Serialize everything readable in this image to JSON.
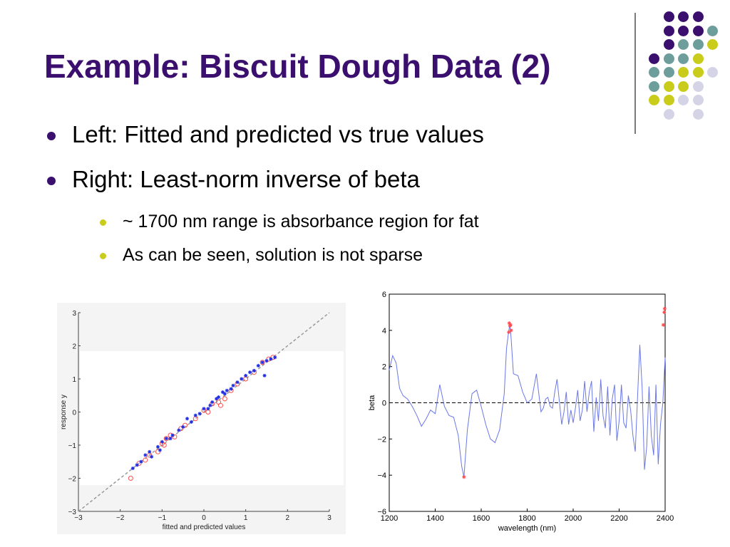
{
  "slide": {
    "title": "Example: Biscuit Dough Data (2)",
    "bullets": [
      "Left: Fitted and predicted vs true values",
      "Right: Least-norm inverse of beta"
    ],
    "sub_bullets": [
      "~ 1700 nm range is absorbance region for fat",
      "As can be seen, solution is not sparse"
    ]
  },
  "colors": {
    "title": "#3b0f6e",
    "bullet": "#3b0f6e",
    "sub_bullet": "#c9cc1a",
    "dot_purple": "#3b0f6e",
    "dot_teal": "#6e9e9c",
    "dot_yellow": "#c9cc1a",
    "dot_lavender": "#d4d4e6",
    "fitted_points": "#1f2fe0",
    "predicted_points": "#ff4d4d",
    "beta_line": "#6b78e6",
    "beta_markers": "#ff4d4d"
  },
  "chart_data": [
    {
      "type": "scatter",
      "xlabel": "fitted and predicted values",
      "ylabel": "response y",
      "xlim": [
        -3,
        3
      ],
      "ylim": [
        -3,
        3
      ],
      "xticks": [
        "−3",
        "−2",
        "−1",
        "0",
        "1",
        "2",
        "3"
      ],
      "yticks": [
        "−3",
        "−2",
        "−1",
        "0",
        "1",
        "2",
        "3"
      ],
      "reference_line": "y = x (dashed)",
      "series": [
        {
          "marker": "asterisk",
          "color": "#1f2fe0",
          "points": [
            [
              -1.7,
              -1.7
            ],
            [
              -1.6,
              -1.6
            ],
            [
              -1.5,
              -1.5
            ],
            [
              -1.4,
              -1.3
            ],
            [
              -1.3,
              -1.2
            ],
            [
              -1.25,
              -1.35
            ],
            [
              -1.1,
              -1.05
            ],
            [
              -1.05,
              -1.15
            ],
            [
              -1.0,
              -0.9
            ],
            [
              -0.9,
              -0.8
            ],
            [
              -0.8,
              -0.8
            ],
            [
              -0.75,
              -0.7
            ],
            [
              -0.6,
              -0.55
            ],
            [
              -0.5,
              -0.45
            ],
            [
              -0.4,
              -0.2
            ],
            [
              -0.3,
              -0.3
            ],
            [
              -0.2,
              -0.1
            ],
            [
              -0.1,
              -0.05
            ],
            [
              0.0,
              0.1
            ],
            [
              0.1,
              0.1
            ],
            [
              0.15,
              0.2
            ],
            [
              0.2,
              0.3
            ],
            [
              0.3,
              0.4
            ],
            [
              0.35,
              0.45
            ],
            [
              0.45,
              0.6
            ],
            [
              0.5,
              0.55
            ],
            [
              0.55,
              0.65
            ],
            [
              0.65,
              0.7
            ],
            [
              0.7,
              0.8
            ],
            [
              0.8,
              0.9
            ],
            [
              0.9,
              1.0
            ],
            [
              1.0,
              1.1
            ],
            [
              1.1,
              1.2
            ],
            [
              1.2,
              1.25
            ],
            [
              1.3,
              1.4
            ],
            [
              1.4,
              1.5
            ],
            [
              1.45,
              1.1
            ],
            [
              1.5,
              1.55
            ],
            [
              1.6,
              1.6
            ],
            [
              1.7,
              1.65
            ]
          ]
        },
        {
          "marker": "circle",
          "color": "#ff4d4d",
          "points": [
            [
              -1.75,
              -2.0
            ],
            [
              -1.55,
              -1.55
            ],
            [
              -1.4,
              -1.45
            ],
            [
              -1.3,
              -1.3
            ],
            [
              -1.1,
              -1.2
            ],
            [
              -1.0,
              -0.95
            ],
            [
              -0.95,
              -1.0
            ],
            [
              -0.9,
              -0.8
            ],
            [
              -0.8,
              -0.7
            ],
            [
              -0.7,
              -0.75
            ],
            [
              -0.55,
              -0.5
            ],
            [
              -0.45,
              -0.4
            ],
            [
              -0.2,
              -0.2
            ],
            [
              0.0,
              0.05
            ],
            [
              0.1,
              0.0
            ],
            [
              0.2,
              0.25
            ],
            [
              0.35,
              0.3
            ],
            [
              0.4,
              0.2
            ],
            [
              0.5,
              0.4
            ],
            [
              0.65,
              0.65
            ],
            [
              0.8,
              0.85
            ],
            [
              1.0,
              1.0
            ],
            [
              1.2,
              1.2
            ],
            [
              1.4,
              1.5
            ],
            [
              1.55,
              1.6
            ],
            [
              1.65,
              1.65
            ]
          ]
        }
      ]
    },
    {
      "type": "line",
      "xlabel": "wavelength (nm)",
      "ylabel": "beta",
      "xlim": [
        1200,
        2400
      ],
      "ylim": [
        -6,
        6
      ],
      "xticks": [
        "1200",
        "1400",
        "1600",
        "1800",
        "2000",
        "2200",
        "2400"
      ],
      "yticks": [
        "−6",
        "−4",
        "−2",
        "0",
        "2",
        "4",
        "6"
      ],
      "reference_line": "y = 0 (dashed)",
      "x": [
        1200,
        1215,
        1230,
        1245,
        1260,
        1280,
        1300,
        1320,
        1340,
        1360,
        1380,
        1400,
        1420,
        1440,
        1460,
        1480,
        1500,
        1515,
        1525,
        1540,
        1560,
        1580,
        1600,
        1620,
        1640,
        1660,
        1680,
        1700,
        1710,
        1720,
        1725,
        1730,
        1740,
        1760,
        1780,
        1800,
        1820,
        1840,
        1860,
        1870,
        1880,
        1890,
        1900,
        1910,
        1920,
        1930,
        1940,
        1950,
        1960,
        1970,
        1980,
        1990,
        2000,
        2010,
        2020,
        2030,
        2040,
        2050,
        2060,
        2070,
        2080,
        2090,
        2100,
        2110,
        2120,
        2130,
        2140,
        2150,
        2160,
        2170,
        2180,
        2190,
        2200,
        2210,
        2220,
        2230,
        2240,
        2250,
        2260,
        2270,
        2280,
        2290,
        2300,
        2310,
        2320,
        2330,
        2340,
        2350,
        2360,
        2370,
        2380,
        2390,
        2400
      ],
      "values": [
        1.8,
        2.6,
        2.2,
        0.8,
        0.4,
        0.2,
        -0.2,
        -0.7,
        -1.3,
        -0.9,
        -0.4,
        -0.6,
        1.0,
        -0.2,
        -0.7,
        -0.8,
        -1.8,
        -3.5,
        -4.1,
        -1.5,
        0.5,
        0.7,
        -0.2,
        -1.2,
        -2.0,
        -2.2,
        -1.5,
        0.5,
        3.0,
        4.0,
        4.3,
        3.6,
        1.6,
        1.5,
        0.6,
        0.0,
        0.2,
        1.6,
        -0.5,
        -0.3,
        0.2,
        0.3,
        -0.2,
        -0.3,
        0.6,
        1.3,
        0.1,
        -1.2,
        -0.5,
        0.6,
        -1.2,
        -0.4,
        -1.1,
        -0.3,
        0.7,
        -1.0,
        -0.4,
        1.2,
        -0.5,
        0.6,
        1.2,
        -1.6,
        0.3,
        -1.0,
        1.3,
        -0.7,
        -1.4,
        0.9,
        -1.8,
        0.2,
        1.0,
        -2.1,
        -1.0,
        1.0,
        -1.1,
        -1.4,
        0.4,
        -0.4,
        -1.8,
        -2.7,
        0.3,
        3.2,
        0.8,
        -3.7,
        -2.4,
        0.9,
        -1.8,
        -2.9,
        1.0,
        -3.4,
        -1.2,
        0.0,
        2.5
      ],
      "markers": [
        [
          1525,
          -4.1
        ],
        [
          1720,
          3.9
        ],
        [
          1722,
          4.4
        ],
        [
          1725,
          4.25
        ],
        [
          1728,
          4.3
        ],
        [
          1730,
          4.0
        ],
        [
          2392,
          4.3
        ],
        [
          2396,
          5.0
        ],
        [
          2398,
          5.2
        ]
      ]
    }
  ]
}
